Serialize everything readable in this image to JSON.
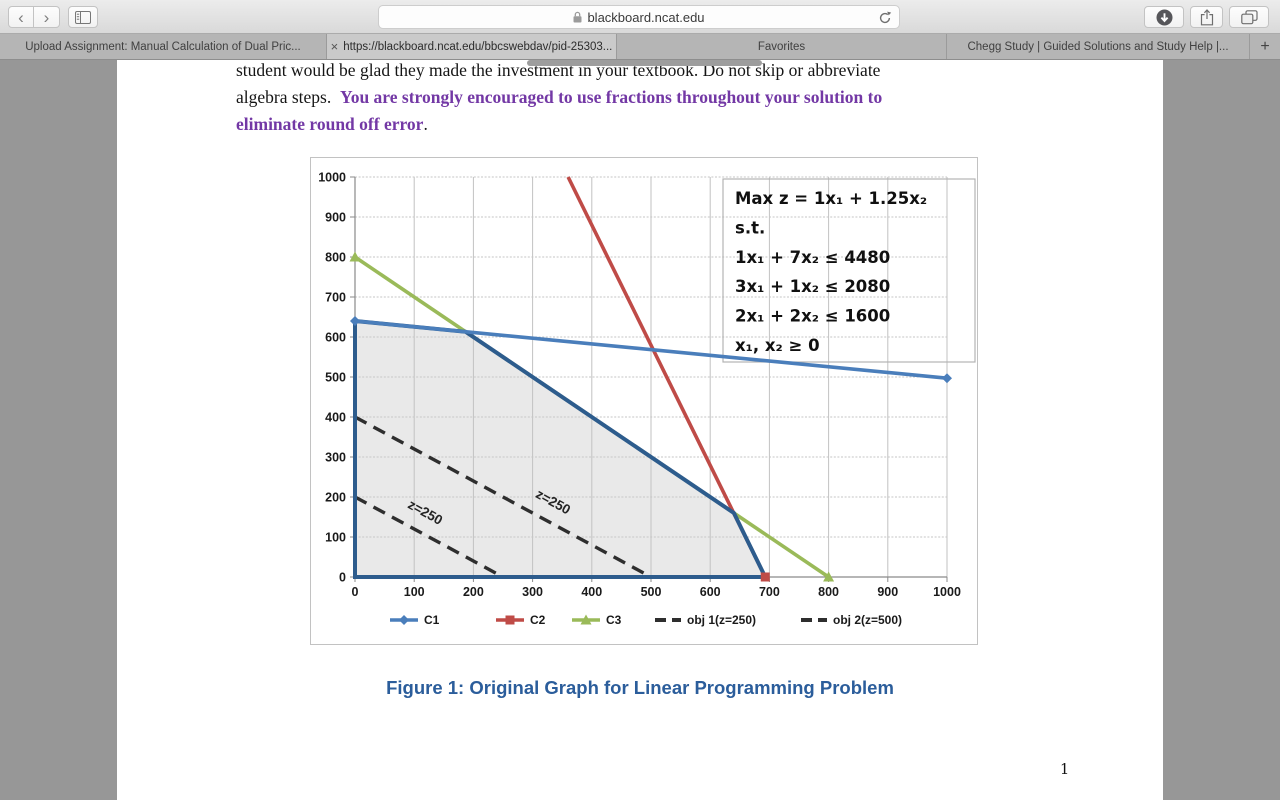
{
  "browser": {
    "toolbar": {
      "back_glyph": "‹",
      "forward_glyph": "›",
      "url": "blackboard.ncat.edu"
    },
    "tabs": [
      {
        "label": "Upload Assignment: Manual Calculation of Dual Pric..."
      },
      {
        "label": "https://blackboard.ncat.edu/bbcswebdav/pid-25303...",
        "active": true,
        "close_glyph": "×"
      },
      {
        "label": "Favorites"
      },
      {
        "label": "Chegg Study | Guided Solutions and Study Help |..."
      }
    ],
    "new_tab_glyph": "+"
  },
  "document": {
    "paragraph_lines": [
      {
        "black": "student would be glad they made the investment in your textbook. Do not skip or abbreviate",
        "purple": ""
      },
      {
        "black": "algebra steps.  ",
        "purple": "You are strongly encouraged to use fractions throughout your solution to"
      },
      {
        "purple": "eliminate round off error",
        "black": "."
      }
    ],
    "purple_color": "#7338a5",
    "caption": "Figure 1: Original Graph for Linear Programming Problem",
    "caption_color": "#2b5d9b",
    "page_number": "1"
  },
  "chart_data": {
    "type": "line",
    "title": "",
    "x_range": [
      0,
      1000
    ],
    "y_range": [
      0,
      1000
    ],
    "grid_step": 100,
    "grid": true,
    "x_ticks": [
      "0",
      "100",
      "200",
      "300",
      "400",
      "500",
      "600",
      "700",
      "800",
      "900",
      "1000"
    ],
    "y_ticks": [
      "0",
      "100",
      "200",
      "300",
      "400",
      "500",
      "600",
      "700",
      "800",
      "900",
      "1000"
    ],
    "series": [
      {
        "name": "C1",
        "color": "#4a7ebb",
        "marker": "diamond",
        "points": [
          [
            0,
            640
          ],
          [
            1000,
            497
          ]
        ],
        "marker_points": [
          [
            0,
            640
          ],
          [
            1000,
            497
          ]
        ]
      },
      {
        "name": "C2",
        "color": "#bf4b47",
        "marker": "square",
        "points": [
          [
            360,
            1000
          ],
          [
            693,
            0
          ]
        ],
        "marker_points": [
          [
            693,
            0
          ]
        ]
      },
      {
        "name": "C3",
        "color": "#9aba59",
        "marker": "triangle",
        "points": [
          [
            0,
            800
          ],
          [
            800,
            0
          ]
        ],
        "marker_points": [
          [
            0,
            800
          ],
          [
            800,
            0
          ]
        ]
      },
      {
        "name": "obj 1(z=250)",
        "color": "#2e2e2e",
        "dashed": true,
        "points": [
          [
            0,
            200
          ],
          [
            250,
            0
          ]
        ]
      },
      {
        "name": "obj 2(z=500)",
        "color": "#2e2e2e",
        "dashed": true,
        "points": [
          [
            0,
            400
          ],
          [
            500,
            0
          ]
        ]
      }
    ],
    "feasible_region": {
      "points": [
        [
          0,
          0
        ],
        [
          0,
          640
        ],
        [
          187,
          613
        ],
        [
          640,
          160
        ],
        [
          693,
          0
        ]
      ],
      "fill": "#e9e9e9",
      "stroke": "#2d5c8d"
    },
    "inline_labels": [
      {
        "text": "z=250",
        "x": 115,
        "y": 152,
        "rotation": 29
      },
      {
        "text": "z=250",
        "x": 331,
        "y": 178,
        "rotation": 29
      }
    ],
    "annotation_box": {
      "lines": [
        "Max z = 1x₁ + 1.25x₂",
        "s.t.",
        "1x₁ + 7x₂ ≤ 4480",
        "3x₁ + 1x₂ ≤ 2080",
        "2x₁ + 2x₂ ≤ 1600",
        "x₁, x₂ ≥ 0"
      ]
    },
    "legend": [
      "C1",
      "C2",
      "C3",
      "obj 1(z=250)",
      "obj 2(z=500)"
    ],
    "legend_position": "bottom"
  }
}
